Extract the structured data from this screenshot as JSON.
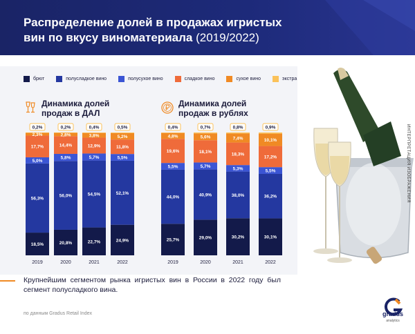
{
  "header": {
    "title_line1": "Распределение долей в продажах игристых",
    "title_line2": "вин по вкусу виноматериала",
    "title_years": "(2019/2022)"
  },
  "legend": [
    {
      "label": "брют",
      "color": "#131a4a"
    },
    {
      "label": "полусладкое вино",
      "color": "#2438a0"
    },
    {
      "label": "полусухое вино",
      "color": "#3b55d4"
    },
    {
      "label": "сладкое вино",
      "color": "#ef6b3a"
    },
    {
      "label": "сухое вино",
      "color": "#f08a24"
    },
    {
      "label": "экстра брют",
      "color": "#fbc25a"
    }
  ],
  "chart_data": [
    {
      "type": "bar",
      "title": "Динамика долей продаж в ДАЛ",
      "title_line1": "Динамика долей",
      "title_line2": "продаж в ДАЛ",
      "stacked": true,
      "categories": [
        "2019",
        "2020",
        "2021",
        "2022"
      ],
      "ylim": [
        0,
        100
      ],
      "series": [
        {
          "name": "брют",
          "color": "#131a4a",
          "values": [
            18.5,
            20.8,
            22.7,
            24.9
          ],
          "labels": [
            "18,5%",
            "20,8%",
            "22,7%",
            "24,9%"
          ]
        },
        {
          "name": "полусладкое вино",
          "color": "#2438a0",
          "values": [
            56.3,
            56.0,
            54.5,
            52.1
          ],
          "labels": [
            "56,3%",
            "56,0%",
            "54,5%",
            "52,1%"
          ]
        },
        {
          "name": "полусухое вино",
          "color": "#3b55d4",
          "values": [
            5.0,
            5.8,
            5.7,
            5.5
          ],
          "labels": [
            "5,0%",
            "5,8%",
            "5,7%",
            "5,5%"
          ]
        },
        {
          "name": "сладкое вино",
          "color": "#ef6b3a",
          "values": [
            17.7,
            14.4,
            12.9,
            11.8
          ],
          "labels": [
            "17,7%",
            "14,4%",
            "12,9%",
            "11,8%"
          ]
        },
        {
          "name": "сухое вино",
          "color": "#f08a24",
          "values": [
            2.3,
            2.8,
            3.8,
            5.2
          ],
          "labels": [
            "2,3%",
            "2,8%",
            "3,8%",
            "5,2%"
          ]
        },
        {
          "name": "экстра брют",
          "color": "#fbc25a",
          "values": [
            0.2,
            0.2,
            0.4,
            0.5
          ],
          "labels": [
            "0,2%",
            "0,2%",
            "0,4%",
            "0,5%"
          ]
        }
      ]
    },
    {
      "type": "bar",
      "title": "Динамика долей продаж в рублях",
      "title_line1": "Динамика долей",
      "title_line2": "продаж в рублях",
      "stacked": true,
      "categories": [
        "2019",
        "2020",
        "2021",
        "2022"
      ],
      "ylim": [
        0,
        100
      ],
      "series": [
        {
          "name": "брют",
          "color": "#131a4a",
          "values": [
            25.7,
            29.0,
            30.2,
            30.1
          ],
          "labels": [
            "25,7%",
            "29,0%",
            "30,2%",
            "30,1%"
          ]
        },
        {
          "name": "полусладкое вино",
          "color": "#2438a0",
          "values": [
            44.0,
            40.9,
            38.0,
            36.2
          ],
          "labels": [
            "44,0%",
            "40,9%",
            "38,0%",
            "36,2%"
          ]
        },
        {
          "name": "полусухое вино",
          "color": "#3b55d4",
          "values": [
            5.5,
            5.7,
            5.3,
            5.5
          ],
          "labels": [
            "5,5%",
            "5,7%",
            "5,3%",
            "5,5%"
          ]
        },
        {
          "name": "сладкое вино",
          "color": "#ef6b3a",
          "values": [
            19.6,
            18.1,
            18.3,
            17.2
          ],
          "labels": [
            "19,6%",
            "18,1%",
            "18,3%",
            "17,2%"
          ]
        },
        {
          "name": "сухое вино",
          "color": "#f08a24",
          "values": [
            4.8,
            5.6,
            7.4,
            10.1
          ],
          "labels": [
            "4,8%",
            "5,6%",
            "7,4%",
            "10,1%"
          ]
        },
        {
          "name": "экстра брют",
          "color": "#fbc25a",
          "values": [
            0.4,
            0.7,
            0.8,
            0.9
          ],
          "labels": [
            "0,4%",
            "0,7%",
            "0,8%",
            "0,9%"
          ]
        }
      ]
    }
  ],
  "side_text": "ИНТЕРПРЕТАЦИЯ ИЗОБРАЖЕНИЯ",
  "footer": {
    "conclusion": "Крупнейшим сегментом рынка игристых вин в России в 2022 году был сегмент полусладкого вина.",
    "source": "по данным Gradus Retail Index",
    "logo_name": "gradus",
    "logo_sub": "analytics"
  },
  "icons": {
    "glasses": "champagne-glasses-icon",
    "coin": "ruble-coin-icon"
  }
}
